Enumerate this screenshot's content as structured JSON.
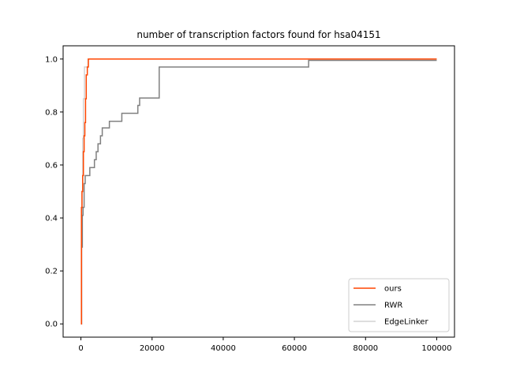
{
  "chart_data": {
    "type": "line",
    "title": "number of transcription factors found for hsa04151",
    "xlabel": "",
    "ylabel": "",
    "xlim": [
      -5000,
      105000
    ],
    "ylim": [
      -0.05,
      1.05
    ],
    "xticks": [
      0,
      20000,
      40000,
      60000,
      80000,
      100000
    ],
    "xtick_labels": [
      "0",
      "20000",
      "40000",
      "60000",
      "80000",
      "100000"
    ],
    "yticks": [
      0.0,
      0.2,
      0.4,
      0.6,
      0.8,
      1.0
    ],
    "ytick_labels": [
      "0.0",
      "0.2",
      "0.4",
      "0.6",
      "0.8",
      "1.0"
    ],
    "grid": false,
    "legend_position": "lower-right",
    "series": [
      {
        "name": "EdgeLinker",
        "color": "#d3d3d3",
        "step": true,
        "x": [
          0,
          150,
          300,
          500,
          700,
          1000,
          1400,
          2000,
          100000
        ],
        "y": [
          0.0,
          0.3,
          0.5,
          0.7,
          0.85,
          0.97,
          0.97,
          1.0,
          1.0
        ]
      },
      {
        "name": "RWR",
        "color": "#808080",
        "step": true,
        "x": [
          0,
          200,
          400,
          600,
          900,
          1200,
          2500,
          3800,
          4300,
          4800,
          5500,
          6000,
          6500,
          8000,
          11500,
          16000,
          16500,
          22000,
          64000,
          100000
        ],
        "y": [
          0.0,
          0.29,
          0.41,
          0.44,
          0.53,
          0.56,
          0.59,
          0.62,
          0.65,
          0.68,
          0.71,
          0.74,
          0.74,
          0.765,
          0.795,
          0.825,
          0.853,
          0.97,
          0.995,
          0.995
        ],
        "last_y": 0.995
      },
      {
        "name": "ours",
        "color": "#ff4500",
        "step": true,
        "x": [
          0,
          150,
          300,
          500,
          700,
          900,
          1100,
          1300,
          1500,
          1800,
          2100,
          100000
        ],
        "y": [
          0.0,
          0.44,
          0.5,
          0.56,
          0.65,
          0.71,
          0.76,
          0.85,
          0.94,
          0.97,
          1.0,
          1.0
        ]
      }
    ],
    "legend_order": [
      "ours",
      "RWR",
      "EdgeLinker"
    ]
  }
}
